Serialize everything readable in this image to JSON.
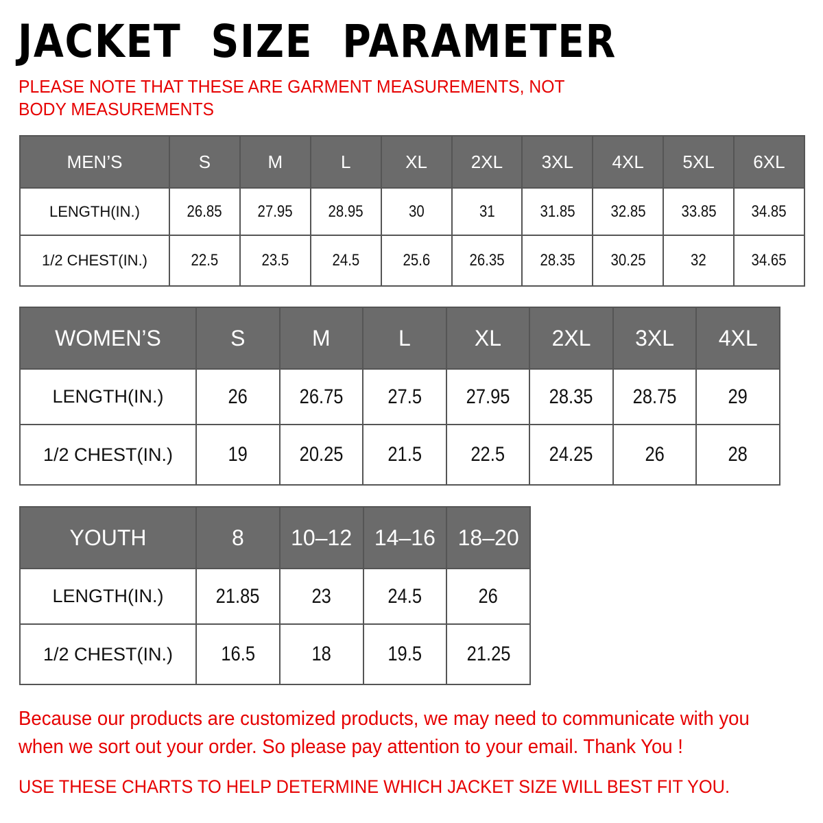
{
  "title": "JACKET  SIZE  PARAMETER",
  "note": "PLEASE NOTE THAT THESE ARE GARMENT MEASUREMENTS, NOT BODY MEASUREMENTS",
  "colors": {
    "header_bg": "#6b6b6b",
    "accent_red": "#e60000"
  },
  "men": {
    "header": "MEN’S",
    "sizes": [
      "S",
      "M",
      "L",
      "XL",
      "2XL",
      "3XL",
      "4XL",
      "5XL",
      "6XL"
    ],
    "rows": [
      {
        "label": "LENGTH(IN.)",
        "values": [
          "26.85",
          "27.95",
          "28.95",
          "30",
          "31",
          "31.85",
          "32.85",
          "33.85",
          "34.85"
        ]
      },
      {
        "label": "1/2 CHEST(IN.)",
        "values": [
          "22.5",
          "23.5",
          "24.5",
          "25.6",
          "26.35",
          "28.35",
          "30.25",
          "32",
          "34.65"
        ]
      }
    ]
  },
  "women": {
    "header": "WOMEN’S",
    "sizes": [
      "S",
      "M",
      "L",
      "XL",
      "2XL",
      "3XL",
      "4XL"
    ],
    "rows": [
      {
        "label": "LENGTH(IN.)",
        "values": [
          "26",
          "26.75",
          "27.5",
          "27.95",
          "28.35",
          "28.75",
          "29"
        ]
      },
      {
        "label": "1/2 CHEST(IN.)",
        "values": [
          "19",
          "20.25",
          "21.5",
          "22.5",
          "24.25",
          "26",
          "28"
        ]
      }
    ]
  },
  "youth": {
    "header": "YOUTH",
    "sizes": [
      "8",
      "10–12",
      "14–16",
      "18–20"
    ],
    "rows": [
      {
        "label": "LENGTH(IN.)",
        "values": [
          "21.85",
          "23",
          "24.5",
          "26"
        ]
      },
      {
        "label": "1/2 CHEST(IN.)",
        "values": [
          "16.5",
          "18",
          "19.5",
          "21.25"
        ]
      }
    ]
  },
  "footer": {
    "message": "Because our products are customized products, we may need to communicate with you when we sort out your order. So please pay attention to your email. Thank You !",
    "advice": "USE THESE CHARTS TO HELP DETERMINE WHICH JACKET SIZE WILL BEST FIT YOU."
  }
}
